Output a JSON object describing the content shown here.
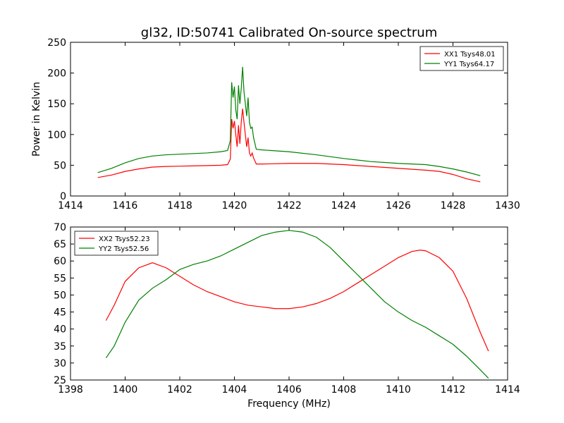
{
  "figure": {
    "title": "gl32, ID:50741 Calibrated On-source spectrum"
  },
  "colors": {
    "red": "#ff0000",
    "green": "#008000"
  },
  "chart_data": [
    {
      "type": "line",
      "title": "gl32, ID:50741 Calibrated On-source spectrum",
      "xlabel": "",
      "ylabel": "Power in Kelvin",
      "xlim": [
        1414,
        1430
      ],
      "ylim": [
        0,
        250
      ],
      "xticks": [
        "1414",
        "1416",
        "1418",
        "1420",
        "1422",
        "1424",
        "1426",
        "1428",
        "1430"
      ],
      "yticks": [
        "0",
        "50",
        "100",
        "150",
        "200",
        "250"
      ],
      "grid": false,
      "legend": "top-right",
      "series": [
        {
          "name": "XX1 Tsys48.01",
          "color": "#ff0000",
          "points": [
            [
              1415.0,
              30
            ],
            [
              1415.5,
              34
            ],
            [
              1416.0,
              40
            ],
            [
              1416.5,
              44
            ],
            [
              1417.0,
              47
            ],
            [
              1417.5,
              48
            ],
            [
              1418.0,
              48.5
            ],
            [
              1418.5,
              49
            ],
            [
              1419.0,
              49.5
            ],
            [
              1419.5,
              50
            ],
            [
              1419.75,
              51
            ],
            [
              1419.85,
              60
            ],
            [
              1419.9,
              125
            ],
            [
              1419.95,
              110
            ],
            [
              1420.0,
              122
            ],
            [
              1420.05,
              100
            ],
            [
              1420.1,
              80
            ],
            [
              1420.15,
              115
            ],
            [
              1420.2,
              85
            ],
            [
              1420.25,
              120
            ],
            [
              1420.3,
              142
            ],
            [
              1420.35,
              120
            ],
            [
              1420.4,
              100
            ],
            [
              1420.45,
              80
            ],
            [
              1420.5,
              95
            ],
            [
              1420.55,
              70
            ],
            [
              1420.6,
              65
            ],
            [
              1420.65,
              70
            ],
            [
              1420.7,
              62
            ],
            [
              1420.8,
              52
            ],
            [
              1421.0,
              52
            ],
            [
              1422.0,
              53
            ],
            [
              1423.0,
              53
            ],
            [
              1424.0,
              51
            ],
            [
              1425.0,
              48
            ],
            [
              1426.0,
              45
            ],
            [
              1427.0,
              42
            ],
            [
              1427.5,
              40
            ],
            [
              1428.0,
              35
            ],
            [
              1428.5,
              28
            ],
            [
              1429.0,
              23
            ]
          ]
        },
        {
          "name": "YY1 Tsys64.17",
          "color": "#008000",
          "points": [
            [
              1415.0,
              38
            ],
            [
              1415.5,
              45
            ],
            [
              1416.0,
              54
            ],
            [
              1416.5,
              61
            ],
            [
              1417.0,
              65
            ],
            [
              1417.5,
              67
            ],
            [
              1418.0,
              68
            ],
            [
              1418.5,
              69
            ],
            [
              1419.0,
              70
            ],
            [
              1419.5,
              72
            ],
            [
              1419.75,
              74
            ],
            [
              1419.85,
              90
            ],
            [
              1419.9,
              185
            ],
            [
              1419.95,
              160
            ],
            [
              1420.0,
              178
            ],
            [
              1420.05,
              140
            ],
            [
              1420.1,
              125
            ],
            [
              1420.15,
              180
            ],
            [
              1420.2,
              150
            ],
            [
              1420.25,
              175
            ],
            [
              1420.3,
              210
            ],
            [
              1420.35,
              170
            ],
            [
              1420.4,
              150
            ],
            [
              1420.45,
              130
            ],
            [
              1420.5,
              160
            ],
            [
              1420.55,
              120
            ],
            [
              1420.6,
              110
            ],
            [
              1420.65,
              112
            ],
            [
              1420.7,
              95
            ],
            [
              1420.8,
              76
            ],
            [
              1421.0,
              75
            ],
            [
              1422.0,
              72
            ],
            [
              1423.0,
              67
            ],
            [
              1424.0,
              61
            ],
            [
              1425.0,
              56
            ],
            [
              1426.0,
              53
            ],
            [
              1427.0,
              51
            ],
            [
              1427.5,
              48
            ],
            [
              1428.0,
              44
            ],
            [
              1428.5,
              39
            ],
            [
              1429.0,
              33
            ]
          ]
        }
      ]
    },
    {
      "type": "line",
      "title": "",
      "xlabel": "Frequency (MHz)",
      "ylabel": "",
      "xlim": [
        1398,
        1414
      ],
      "ylim": [
        25,
        70
      ],
      "xticks": [
        "1398",
        "1400",
        "1402",
        "1404",
        "1406",
        "1408",
        "1410",
        "1412",
        "1414"
      ],
      "yticks": [
        "25",
        "30",
        "35",
        "40",
        "45",
        "50",
        "55",
        "60",
        "65",
        "70"
      ],
      "grid": false,
      "legend": "top-left",
      "series": [
        {
          "name": "XX2 Tsys52.23",
          "color": "#ff0000",
          "points": [
            [
              1399.3,
              42.5
            ],
            [
              1399.6,
              47
            ],
            [
              1400.0,
              54
            ],
            [
              1400.5,
              58
            ],
            [
              1401.0,
              59.5
            ],
            [
              1401.5,
              58
            ],
            [
              1402.0,
              55.5
            ],
            [
              1402.5,
              53
            ],
            [
              1403.0,
              51
            ],
            [
              1403.5,
              49.5
            ],
            [
              1404.0,
              48
            ],
            [
              1404.5,
              47
            ],
            [
              1405.0,
              46.5
            ],
            [
              1405.5,
              46
            ],
            [
              1406.0,
              46
            ],
            [
              1406.5,
              46.5
            ],
            [
              1407.0,
              47.5
            ],
            [
              1407.5,
              49
            ],
            [
              1408.0,
              51
            ],
            [
              1408.5,
              53.5
            ],
            [
              1409.0,
              56
            ],
            [
              1409.5,
              58.5
            ],
            [
              1410.0,
              61
            ],
            [
              1410.5,
              62.8
            ],
            [
              1410.8,
              63.2
            ],
            [
              1411.0,
              63
            ],
            [
              1411.5,
              61
            ],
            [
              1412.0,
              57
            ],
            [
              1412.5,
              49
            ],
            [
              1413.0,
              39
            ],
            [
              1413.3,
              33.5
            ]
          ]
        },
        {
          "name": "YY2 Tsys52.56",
          "color": "#008000",
          "points": [
            [
              1399.3,
              31.5
            ],
            [
              1399.6,
              35
            ],
            [
              1400.0,
              42
            ],
            [
              1400.5,
              48.5
            ],
            [
              1401.0,
              52
            ],
            [
              1401.5,
              54.5
            ],
            [
              1402.0,
              57.5
            ],
            [
              1402.5,
              59
            ],
            [
              1403.0,
              60
            ],
            [
              1403.5,
              61.5
            ],
            [
              1404.0,
              63.5
            ],
            [
              1404.5,
              65.5
            ],
            [
              1405.0,
              67.5
            ],
            [
              1405.5,
              68.5
            ],
            [
              1406.0,
              69
            ],
            [
              1406.5,
              68.5
            ],
            [
              1407.0,
              67
            ],
            [
              1407.5,
              64
            ],
            [
              1408.0,
              60
            ],
            [
              1408.5,
              56
            ],
            [
              1409.0,
              52
            ],
            [
              1409.5,
              48
            ],
            [
              1410.0,
              45
            ],
            [
              1410.5,
              42.5
            ],
            [
              1411.0,
              40.5
            ],
            [
              1411.5,
              38
            ],
            [
              1412.0,
              35.5
            ],
            [
              1412.5,
              32
            ],
            [
              1413.0,
              28
            ],
            [
              1413.3,
              25.5
            ]
          ]
        }
      ]
    }
  ]
}
